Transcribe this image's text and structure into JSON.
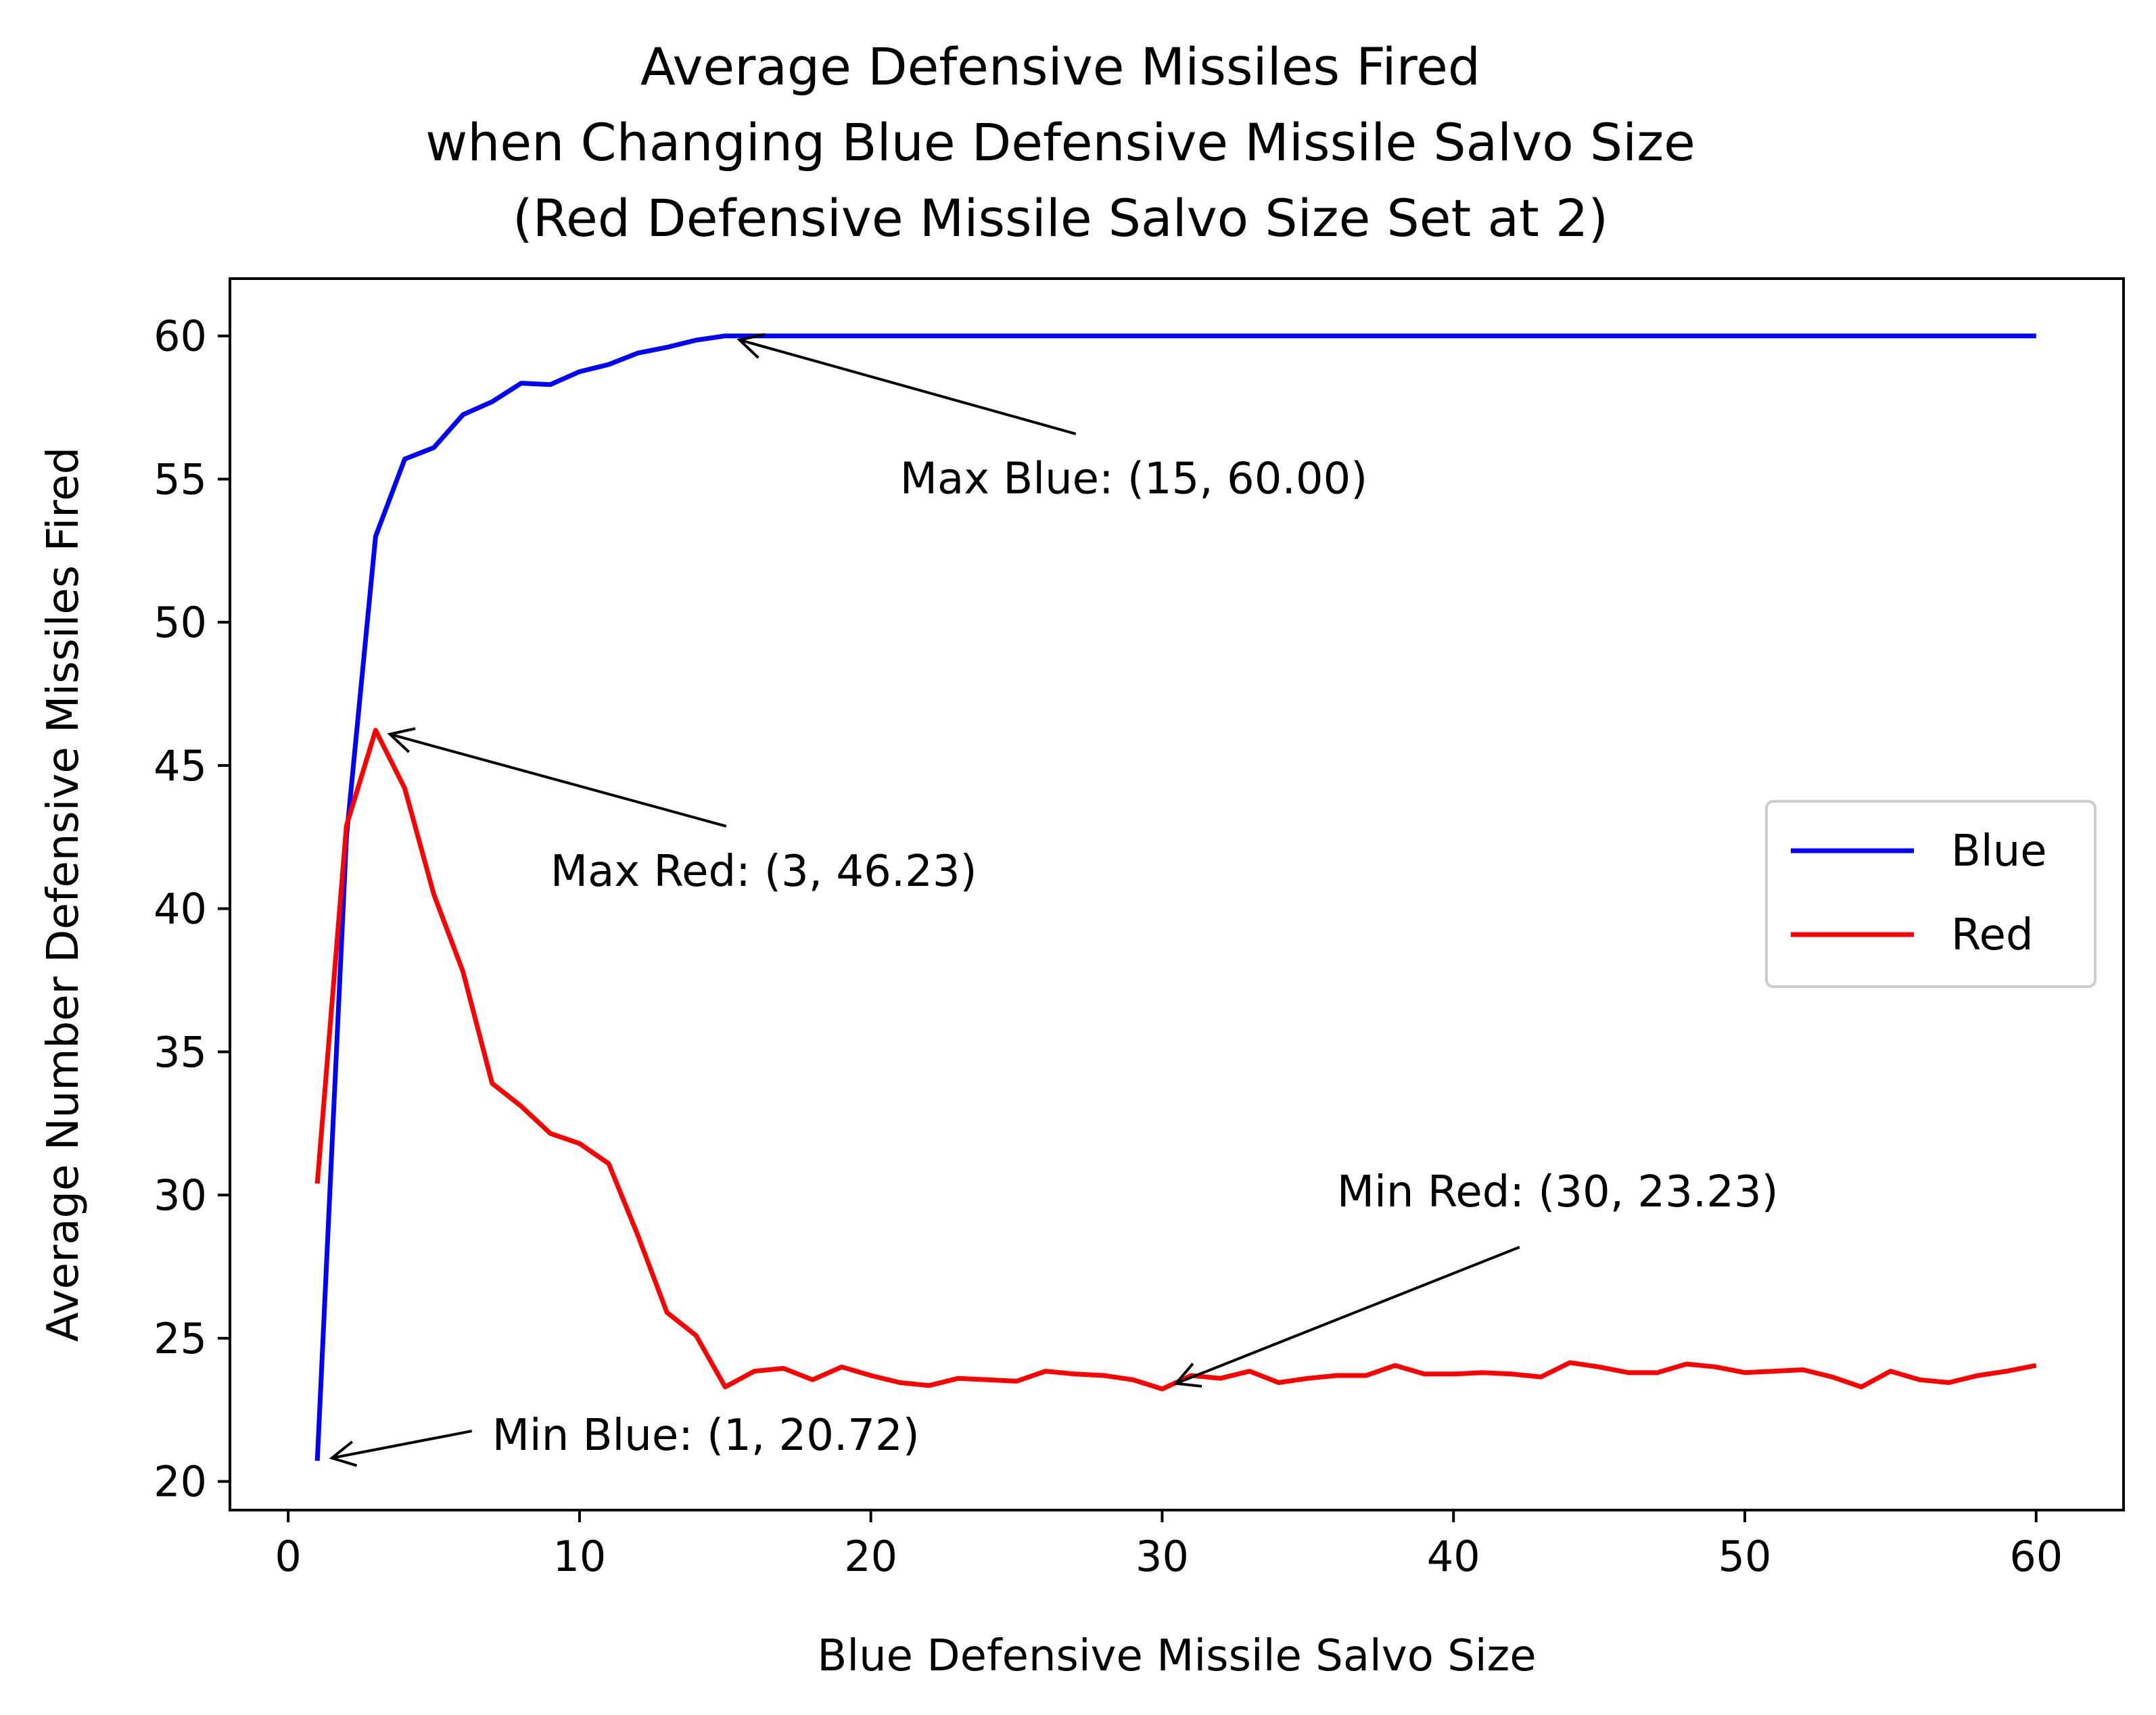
{
  "chart_data": {
    "type": "line",
    "title": [
      "Average Defensive Missiles Fired",
      "when Changing Blue Defensive Missile Salvo Size",
      "(Red Defensive Missile Salvo Size Set at 2)"
    ],
    "xlabel": "Blue Defensive Missile Salvo Size",
    "ylabel": "Average Number Defensive Missiles Fired",
    "xlim": [
      -2,
      63
    ],
    "ylim": [
      19,
      62
    ],
    "xticks": [
      0,
      10,
      20,
      30,
      40,
      50,
      60
    ],
    "yticks": [
      20,
      25,
      30,
      35,
      40,
      45,
      50,
      55,
      60
    ],
    "grid": false,
    "legend_position": "center-right",
    "x": [
      1,
      2,
      3,
      4,
      5,
      6,
      7,
      8,
      9,
      10,
      11,
      12,
      13,
      14,
      15,
      16,
      17,
      18,
      19,
      20,
      21,
      22,
      23,
      24,
      25,
      26,
      27,
      28,
      29,
      30,
      31,
      32,
      33,
      34,
      35,
      36,
      37,
      38,
      39,
      40,
      41,
      42,
      43,
      44,
      45,
      46,
      47,
      48,
      49,
      50,
      51,
      52,
      53,
      54,
      55,
      56,
      57,
      58,
      59,
      60
    ],
    "series": [
      {
        "name": "Blue",
        "color": "#0000ff",
        "values": [
          20.72,
          42.5,
          53.0,
          55.7,
          56.1,
          57.25,
          57.7,
          58.35,
          58.3,
          58.75,
          59.0,
          59.4,
          59.6,
          59.85,
          60.0,
          60.0,
          60.0,
          60.0,
          60.0,
          60.0,
          60.0,
          60.0,
          60.0,
          60.0,
          60.0,
          60.0,
          60.0,
          60.0,
          60.0,
          60.0,
          60.0,
          60.0,
          60.0,
          60.0,
          60.0,
          60.0,
          60.0,
          60.0,
          60.0,
          60.0,
          60.0,
          60.0,
          60.0,
          60.0,
          60.0,
          60.0,
          60.0,
          60.0,
          60.0,
          60.0,
          60.0,
          60.0,
          60.0,
          60.0,
          60.0,
          60.0,
          60.0,
          60.0,
          60.0,
          60.0
        ]
      },
      {
        "name": "Red",
        "color": "#ff0000",
        "values": [
          30.4,
          42.9,
          46.23,
          44.2,
          40.5,
          37.8,
          33.9,
          33.1,
          32.15,
          31.8,
          31.1,
          28.6,
          25.9,
          25.1,
          23.3,
          23.85,
          23.95,
          23.55,
          24.0,
          23.7,
          23.45,
          23.35,
          23.6,
          23.55,
          23.5,
          23.85,
          23.75,
          23.7,
          23.55,
          23.23,
          23.7,
          23.6,
          23.85,
          23.45,
          23.6,
          23.7,
          23.7,
          24.05,
          23.75,
          23.75,
          23.8,
          23.75,
          23.65,
          24.15,
          24.0,
          23.8,
          23.8,
          24.1,
          24.0,
          23.8,
          23.85,
          23.9,
          23.65,
          23.3,
          23.85,
          23.55,
          23.45,
          23.7,
          23.85,
          24.05
        ]
      }
    ],
    "annotations": [
      {
        "text": "Max Blue: (15, 60.00)",
        "point": [
          15,
          60.0
        ],
        "text_at": [
          21,
          54.5
        ]
      },
      {
        "text": "Max Red: (3, 46.23)",
        "point": [
          3,
          46.23
        ],
        "text_at": [
          9,
          40.8
        ]
      },
      {
        "text": "Min Red: (30, 23.23)",
        "point": [
          30,
          23.23
        ],
        "text_at": [
          36,
          29.6
        ]
      },
      {
        "text": "Min Blue: (1, 20.72)",
        "point": [
          1,
          20.72
        ],
        "text_at": [
          7,
          21.1
        ]
      }
    ]
  }
}
